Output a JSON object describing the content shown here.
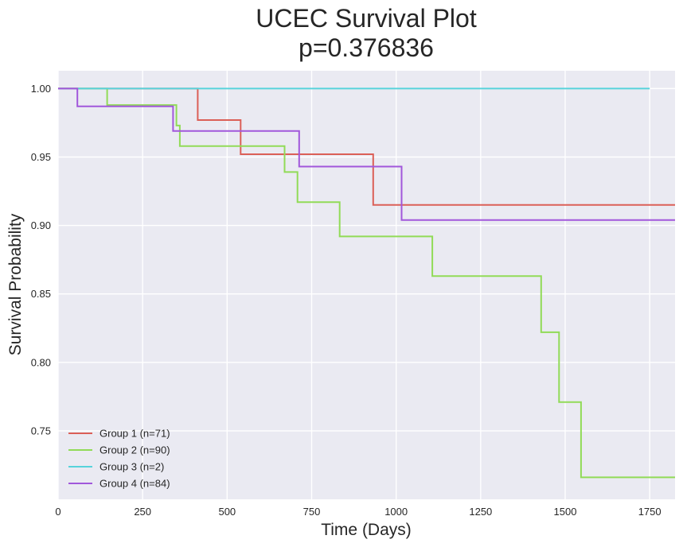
{
  "chart_data": {
    "type": "line",
    "title": "UCEC Survival Plot",
    "subtitle": "p=0.376836",
    "xlabel": "Time (Days)",
    "ylabel": "Survival Probability",
    "xlim": [
      0,
      1825
    ],
    "ylim": [
      0.7,
      1.013
    ],
    "x_ticks": [
      0,
      250,
      500,
      750,
      1000,
      1250,
      1500,
      1750
    ],
    "y_ticks": [
      0.75,
      0.8,
      0.85,
      0.9,
      0.95,
      1.0
    ],
    "x_tick_labels": [
      "0",
      "250",
      "500",
      "750",
      "1000",
      "1250",
      "1500",
      "1750"
    ],
    "y_tick_labels": [
      "0.75",
      "0.80",
      "0.85",
      "0.90",
      "0.95",
      "1.00"
    ],
    "grid": true,
    "legend_position": "bottom-left",
    "series": [
      {
        "name": "Group 1 (n=71)",
        "color": "#db5f57",
        "x": [
          0,
          413,
          540,
          932,
          1825
        ],
        "y": [
          1.0,
          0.977,
          0.952,
          0.915,
          0.915
        ]
      },
      {
        "name": "Group 2 (n=90)",
        "color": "#91db57",
        "x": [
          0,
          145,
          350,
          360,
          670,
          708,
          833,
          1107,
          1429,
          1482,
          1547,
          1825
        ],
        "y": [
          1.0,
          0.988,
          0.973,
          0.958,
          0.939,
          0.917,
          0.892,
          0.863,
          0.822,
          0.771,
          0.716,
          0.716
        ]
      },
      {
        "name": "Group 3 (n=2)",
        "color": "#57d3db",
        "x": [
          0,
          1750
        ],
        "y": [
          1.0,
          1.0
        ]
      },
      {
        "name": "Group 4 (n=84)",
        "color": "#a157db",
        "x": [
          0,
          57,
          340,
          713,
          1016,
          1825
        ],
        "y": [
          1.0,
          0.987,
          0.969,
          0.943,
          0.904,
          0.904
        ]
      }
    ]
  }
}
